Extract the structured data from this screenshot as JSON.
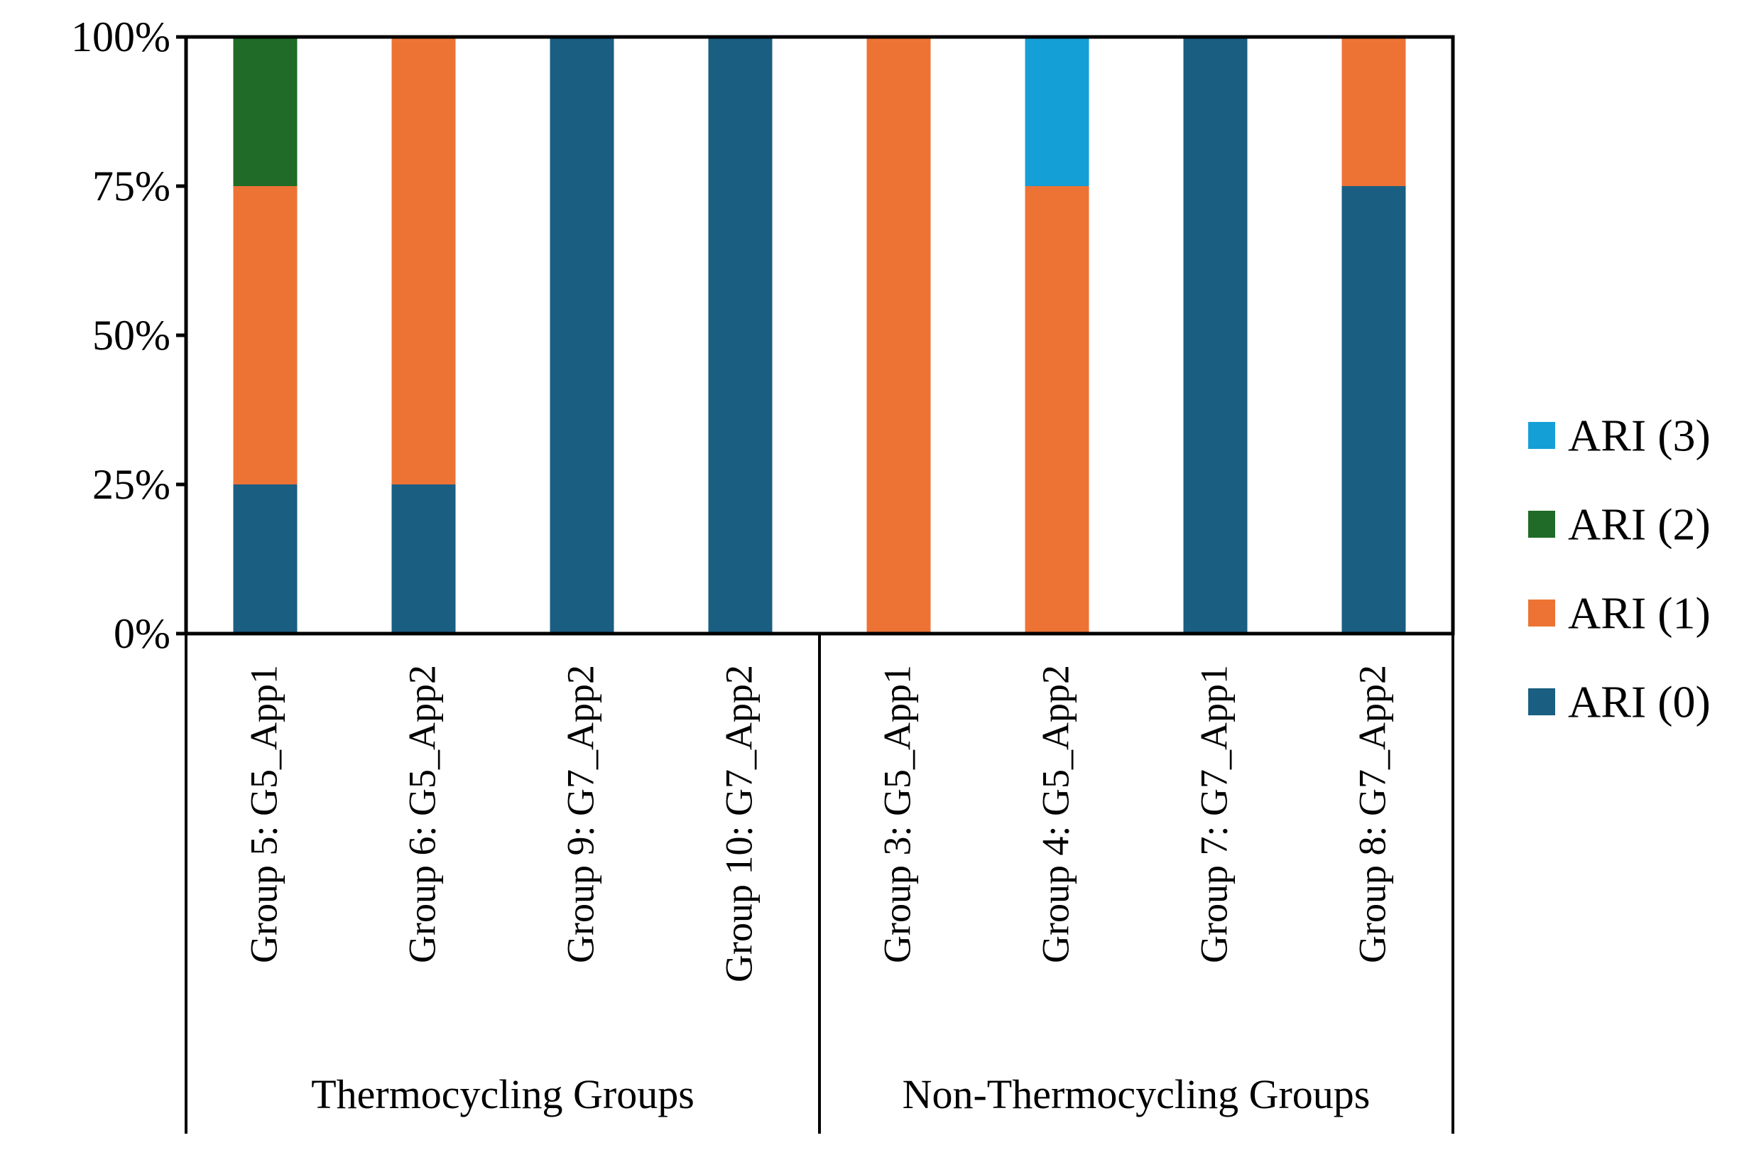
{
  "chart_data": {
    "type": "bar",
    "stacked": true,
    "percent": true,
    "title": "",
    "xlabel": "",
    "ylabel": "",
    "ylim": [
      0,
      100
    ],
    "yticks": [
      "0%",
      "25%",
      "50%",
      "75%",
      "100%"
    ],
    "grid": false,
    "legend_position": "right",
    "categories": [
      "Group 5: G5_App1",
      "Group 6: G5_App2",
      "Group 9: G7_App2",
      "Group 10: G7_App2",
      "Group 3: G5_App1",
      "Group 4: G5_App2",
      "Group 7: G7_App1",
      "Group 8: G7_App2"
    ],
    "category_groups": [
      {
        "label": "Thermocycling Groups",
        "count": 4
      },
      {
        "label": "Non-Thermocycling Groups",
        "count": 4
      }
    ],
    "series": [
      {
        "name": "ARI (0)",
        "color": "#1a5e82",
        "values": [
          25,
          25,
          100,
          100,
          0,
          0,
          100,
          75
        ]
      },
      {
        "name": "ARI (1)",
        "color": "#ed7335",
        "values": [
          50,
          75,
          0,
          0,
          100,
          75,
          0,
          25
        ]
      },
      {
        "name": "ARI (2)",
        "color": "#1f6b27",
        "values": [
          25,
          0,
          0,
          0,
          0,
          0,
          0,
          0
        ]
      },
      {
        "name": "ARI (3)",
        "color": "#149fd7",
        "values": [
          0,
          0,
          0,
          0,
          0,
          25,
          0,
          0
        ]
      }
    ],
    "legend_order": [
      "ARI (3)",
      "ARI (2)",
      "ARI (1)",
      "ARI (0)"
    ]
  }
}
